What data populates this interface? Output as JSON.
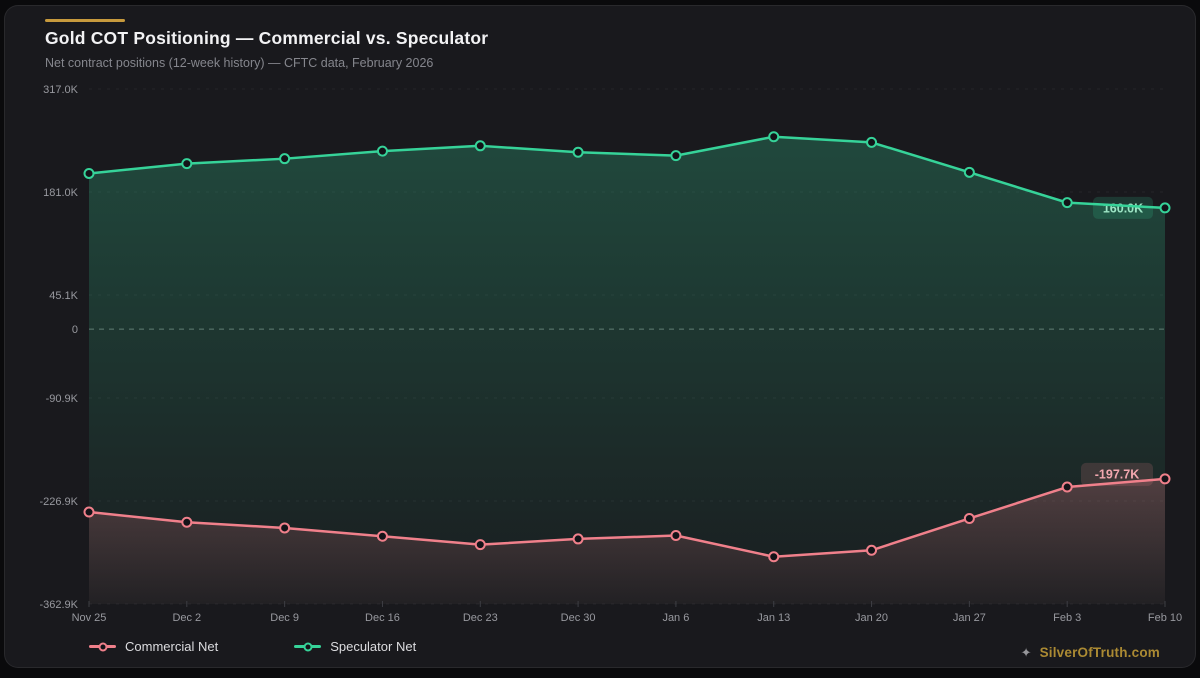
{
  "header": {
    "title": "Gold COT Positioning — Commercial vs. Speculator",
    "subtitle": "Net contract positions (12-week history) — CFTC data, February 2026",
    "accent_color": "#c79a3d"
  },
  "chart_data": {
    "type": "line",
    "categories": [
      "Nov 25",
      "Dec 2",
      "Dec 9",
      "Dec 16",
      "Dec 23",
      "Dec 30",
      "Jan 6",
      "Jan 13",
      "Jan 20",
      "Jan 27",
      "Feb 3",
      "Feb 10"
    ],
    "series": [
      {
        "name": "Commercial Net",
        "color": "#f0808b",
        "values": [
          -241.5,
          -255.0,
          -262.5,
          -273.5,
          -284.5,
          -277.0,
          -272.5,
          -300.5,
          -292.0,
          -250.0,
          -208.5,
          -197.7
        ],
        "end_label": "-197.7K",
        "unit": "K"
      },
      {
        "name": "Speculator Net",
        "color": "#36d399",
        "values": [
          205.5,
          218.5,
          225.0,
          235.0,
          242.0,
          233.5,
          229.0,
          254.0,
          246.5,
          207.0,
          167.0,
          160.0
        ],
        "end_label": "160.0K",
        "unit": "K"
      }
    ],
    "y_ticks": [
      {
        "label": "317.0K",
        "value": 317.0
      },
      {
        "label": "181.0K",
        "value": 181.0
      },
      {
        "label": "45.1K",
        "value": 45.1
      },
      {
        "label": "0",
        "value": 0
      },
      {
        "label": "-90.9K",
        "value": -90.9
      },
      {
        "label": "-226.9K",
        "value": -226.9
      },
      {
        "label": "-362.9K",
        "value": -362.9
      }
    ],
    "ylim": [
      -362.9,
      317.0
    ],
    "zero_line_dashed": true,
    "grid": "faint-dashed-horizontal",
    "legend_position": "bottom-left",
    "title": "Gold COT Positioning — Commercial vs. Speculator"
  },
  "legend": {
    "items": [
      {
        "label": "Commercial Net",
        "color": "#f0808b"
      },
      {
        "label": "Speculator Net",
        "color": "#36d399"
      }
    ]
  },
  "watermark": {
    "icon": "sparkle-icon",
    "icon_glyph": "✦",
    "text": "SilverOfTruth.com",
    "color": "#ab8a33"
  }
}
